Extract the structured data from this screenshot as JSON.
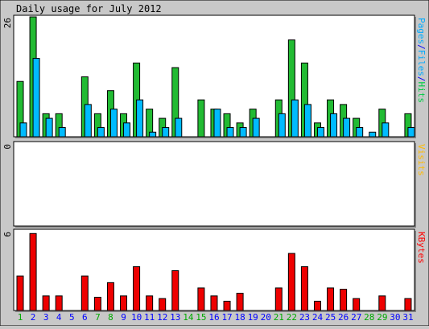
{
  "chart_data": {
    "type": "bar",
    "title": "Daily usage for July 2012",
    "days": [
      "1",
      "2",
      "3",
      "4",
      "5",
      "6",
      "7",
      "8",
      "9",
      "10",
      "11",
      "12",
      "13",
      "14",
      "15",
      "16",
      "17",
      "18",
      "19",
      "20",
      "21",
      "22",
      "23",
      "24",
      "25",
      "26",
      "27",
      "28",
      "29",
      "30",
      "31"
    ],
    "weekend_days": [
      "1",
      "7",
      "8",
      "14",
      "15",
      "21",
      "22",
      "28",
      "29"
    ],
    "panels": [
      {
        "id": "pages-files-hits",
        "ymax_label": "26",
        "ymax": 26,
        "side_label_parts": [
          {
            "text": "Pages",
            "color": "#00aaff"
          },
          {
            "text": "/",
            "color": "#0000ff"
          },
          {
            "text": "Files",
            "color": "#00aaff"
          },
          {
            "text": "/",
            "color": "#0000ff"
          },
          {
            "text": "Hits",
            "color": "#00cc44"
          }
        ],
        "series": [
          {
            "name": "Hits",
            "color": "#22bb33",
            "values": [
              12,
              26,
              5,
              5,
              0,
              13,
              5,
              10,
              5,
              16,
              6,
              4,
              15,
              0,
              8,
              6,
              5,
              3,
              6,
              0,
              8,
              21,
              16,
              3,
              8,
              7,
              4,
              0,
              6,
              0,
              5
            ]
          },
          {
            "name": "Files",
            "color": "#00bbff",
            "values": [
              3,
              17,
              4,
              2,
              0,
              7,
              2,
              6,
              3,
              8,
              1,
              2,
              4,
              0,
              0,
              6,
              2,
              2,
              4,
              0,
              5,
              8,
              7,
              2,
              5,
              4,
              2,
              1,
              3,
              0,
              2
            ]
          }
        ]
      },
      {
        "id": "visits",
        "ymax_label": "0",
        "ymax": 0,
        "side_label_parts": [
          {
            "text": "Visits",
            "color": "#ffbb00"
          }
        ],
        "series": []
      },
      {
        "id": "kbytes",
        "ymax_label": "6",
        "ymax": 6,
        "side_label_parts": [
          {
            "text": "KBytes",
            "color": "#ff0000"
          }
        ],
        "series": [
          {
            "name": "KBytes",
            "color": "#ee0000",
            "values": [
              2.6,
              5.8,
              1.1,
              1.1,
              0,
              2.6,
              1.0,
              2.1,
              1.1,
              3.3,
              1.1,
              0.9,
              3.0,
              0,
              1.7,
              1.1,
              0.7,
              1.3,
              0,
              0,
              1.7,
              4.3,
              3.3,
              0.7,
              1.7,
              1.6,
              0.9,
              0,
              1.1,
              0,
              0.9
            ]
          }
        ]
      }
    ],
    "colors": {
      "background": "#c8c8c8",
      "plot": "#ffffff",
      "weekday": "#0000ff",
      "weekend": "#00aa00"
    }
  }
}
